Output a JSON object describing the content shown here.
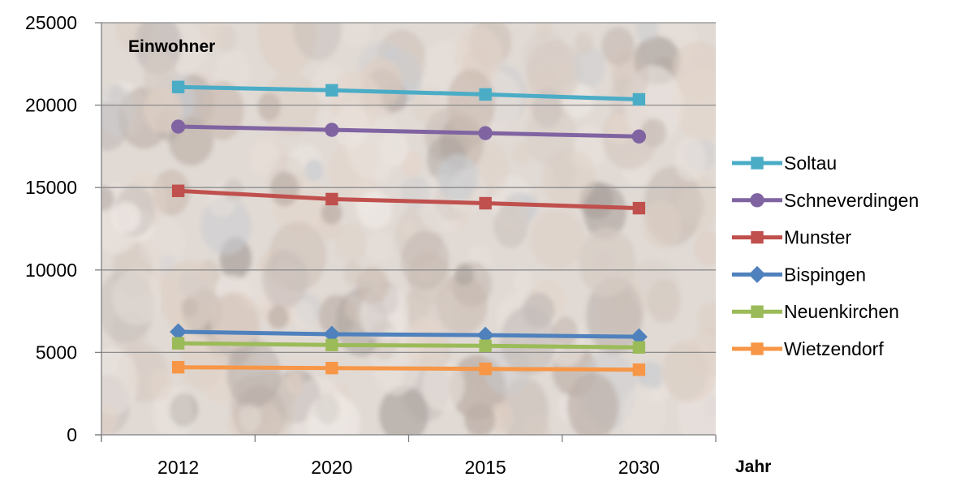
{
  "chart_data": {
    "type": "line",
    "title": "",
    "ylabel": "Einwohner",
    "xlabel": "Jahr",
    "categories": [
      "2012",
      "2020",
      "2015",
      "2030"
    ],
    "ylim": [
      0,
      25000
    ],
    "yticks": [
      0,
      5000,
      10000,
      15000,
      20000,
      25000
    ],
    "grid": true,
    "legend": "right",
    "background": "crowd photo (faded)",
    "series": [
      {
        "name": "Soltau",
        "color": "#4BACC6",
        "marker": "square",
        "values": [
          21100,
          20900,
          20650,
          20350
        ]
      },
      {
        "name": "Schneverdingen",
        "color": "#8064A2",
        "marker": "circle",
        "values": [
          18700,
          18500,
          18300,
          18100
        ]
      },
      {
        "name": "Munster",
        "color": "#C0504D",
        "marker": "square",
        "values": [
          14800,
          14300,
          14050,
          13750
        ]
      },
      {
        "name": "Bispingen",
        "color": "#4F81BD",
        "marker": "diamond",
        "values": [
          6250,
          6100,
          6050,
          5950
        ]
      },
      {
        "name": "Neuenkirchen",
        "color": "#9BBB59",
        "marker": "square",
        "values": [
          5550,
          5450,
          5400,
          5300
        ]
      },
      {
        "name": "Wietzendorf",
        "color": "#F79646",
        "marker": "square",
        "values": [
          4100,
          4050,
          4000,
          3950
        ]
      }
    ]
  }
}
